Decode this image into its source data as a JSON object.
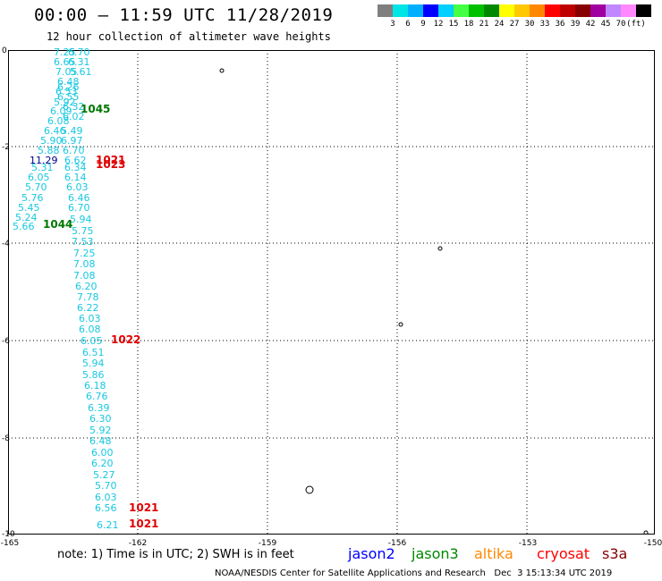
{
  "header": {
    "title": "00:00 — 11:59 UTC 11/28/2019",
    "subtitle": "12 hour collection of altimeter wave heights"
  },
  "legend": {
    "colors": [
      "#7f7f7f",
      "#00e5e5",
      "#00b0ff",
      "#0000ff",
      "#00d0ff",
      "#44ff44",
      "#00c000",
      "#008800",
      "#ffff00",
      "#ffc800",
      "#ff8800",
      "#ff0000",
      "#c00000",
      "#880000",
      "#a000a0",
      "#c088ff",
      "#ff88ff",
      "#000000"
    ],
    "labels": [
      "3",
      "6",
      "9",
      "12",
      "15",
      "18",
      "21",
      "24",
      "27",
      "30",
      "33",
      "36",
      "39",
      "42",
      "45",
      "70",
      "(ft)"
    ],
    "label_units": "(ft)"
  },
  "map": {
    "lat_labels": [
      "0",
      "-2",
      "-4",
      "-6",
      "-8",
      "-10"
    ],
    "lon_labels": [
      "-165",
      "-162",
      "-159",
      "-156",
      "-153",
      "-150"
    ],
    "colors": {
      "cyan": "#18c8e0",
      "green": "#007700",
      "red": "#e00000",
      "darkblue": "#000088"
    },
    "observations": [
      {
        "text": "7.25",
        "color": "cyan"
      },
      {
        "text": "6.70",
        "color": "cyan"
      },
      {
        "text": "6.65",
        "color": "cyan"
      },
      {
        "text": "6.31",
        "color": "cyan"
      },
      {
        "text": "7.05",
        "color": "cyan"
      },
      {
        "text": "5.61",
        "color": "cyan"
      },
      {
        "text": "6.48",
        "color": "cyan"
      },
      {
        "text": "6.26",
        "color": "cyan"
      },
      {
        "text": "6.53",
        "color": "cyan"
      },
      {
        "text": "6.55",
        "color": "cyan"
      },
      {
        "text": "5.92",
        "color": "cyan"
      },
      {
        "text": "6.32",
        "color": "cyan"
      },
      {
        "text": "6.09",
        "color": "cyan"
      },
      {
        "text": "6.02",
        "color": "cyan"
      },
      {
        "text": "1045",
        "color": "green"
      },
      {
        "text": "6.08",
        "color": "cyan"
      },
      {
        "text": "5.49",
        "color": "cyan"
      },
      {
        "text": "6.46",
        "color": "cyan"
      },
      {
        "text": "5.90",
        "color": "cyan"
      },
      {
        "text": "6.97",
        "color": "cyan"
      },
      {
        "text": "5.88",
        "color": "cyan"
      },
      {
        "text": "6.70",
        "color": "cyan"
      },
      {
        "text": "11.29",
        "color": "darkblue"
      },
      {
        "text": "6.62",
        "color": "cyan"
      },
      {
        "text": "1021",
        "color": "red"
      },
      {
        "text": "1023",
        "color": "red"
      },
      {
        "text": "5.31",
        "color": "cyan"
      },
      {
        "text": "6.34",
        "color": "cyan"
      },
      {
        "text": "6.05",
        "color": "cyan"
      },
      {
        "text": "6.14",
        "color": "cyan"
      },
      {
        "text": "5.70",
        "color": "cyan"
      },
      {
        "text": "6.03",
        "color": "cyan"
      },
      {
        "text": "5.76",
        "color": "cyan"
      },
      {
        "text": "6.46",
        "color": "cyan"
      },
      {
        "text": "5.45",
        "color": "cyan"
      },
      {
        "text": "6.70",
        "color": "cyan"
      },
      {
        "text": "5.24",
        "color": "cyan"
      },
      {
        "text": "5.94",
        "color": "cyan"
      },
      {
        "text": "5.66",
        "color": "cyan"
      },
      {
        "text": "1044",
        "color": "green"
      },
      {
        "text": "5.75",
        "color": "cyan"
      },
      {
        "text": "7.53",
        "color": "cyan"
      },
      {
        "text": "7.25",
        "color": "cyan"
      },
      {
        "text": "7.08",
        "color": "cyan"
      },
      {
        "text": "7.08",
        "color": "cyan"
      },
      {
        "text": "6.20",
        "color": "cyan"
      },
      {
        "text": "7.78",
        "color": "cyan"
      },
      {
        "text": "6.22",
        "color": "cyan"
      },
      {
        "text": "6.03",
        "color": "cyan"
      },
      {
        "text": "6.08",
        "color": "cyan"
      },
      {
        "text": "6.05",
        "color": "cyan"
      },
      {
        "text": "1022",
        "color": "red"
      },
      {
        "text": "6.51",
        "color": "cyan"
      },
      {
        "text": "5.94",
        "color": "cyan"
      },
      {
        "text": "5.86",
        "color": "cyan"
      },
      {
        "text": "6.18",
        "color": "cyan"
      },
      {
        "text": "6.76",
        "color": "cyan"
      },
      {
        "text": "6.39",
        "color": "cyan"
      },
      {
        "text": "6.30",
        "color": "cyan"
      },
      {
        "text": "5.92",
        "color": "cyan"
      },
      {
        "text": "6.48",
        "color": "cyan"
      },
      {
        "text": "6.00",
        "color": "cyan"
      },
      {
        "text": "6.20",
        "color": "cyan"
      },
      {
        "text": "5.27",
        "color": "cyan"
      },
      {
        "text": "5.70",
        "color": "cyan"
      },
      {
        "text": "6.03",
        "color": "cyan"
      },
      {
        "text": "6.56",
        "color": "cyan"
      },
      {
        "text": "1021",
        "color": "red"
      },
      {
        "text": "6.21",
        "color": "cyan"
      },
      {
        "text": "1021",
        "color": "red"
      }
    ]
  },
  "footer": {
    "note": "note: 1) Time is in UTC; 2) SWH is in feet",
    "satellites": [
      {
        "name": "jason2",
        "color": "#0000ff"
      },
      {
        "name": "jason3",
        "color": "#008800"
      },
      {
        "name": "altika",
        "color": "#ff8800"
      },
      {
        "name": "cryosat",
        "color": "#ff0000"
      },
      {
        "name": "s3a",
        "color": "#880000"
      }
    ],
    "credit": "NOAA/NESDIS Center for Satellite Applications and Research   Dec  3 15:13:34 UTC 2019"
  }
}
